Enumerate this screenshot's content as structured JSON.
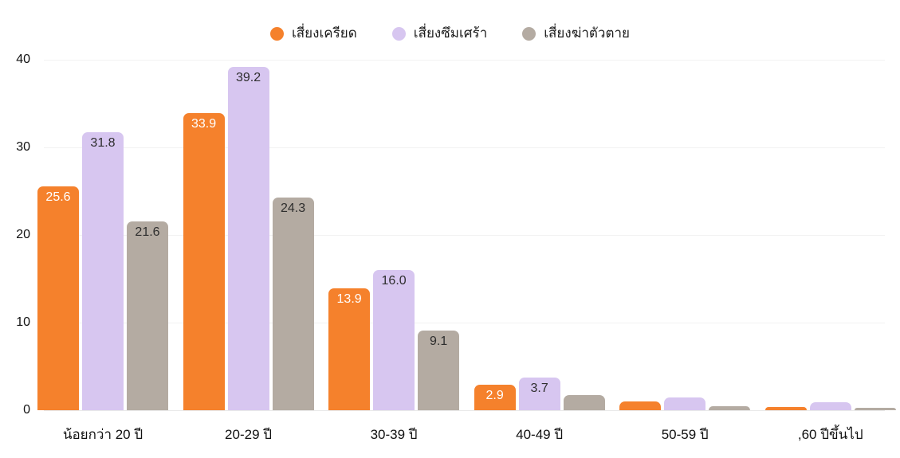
{
  "chart_data": {
    "type": "bar",
    "title": "",
    "xlabel": "",
    "ylabel": "",
    "ylim": [
      0,
      40
    ],
    "yticks": [
      0,
      10,
      20,
      30,
      40
    ],
    "grid": true,
    "legend_position": "top",
    "categories": [
      "น้อยกว่า 20 ปี",
      "20-29 ปี",
      "30-39 ปี",
      "40-49 ปี",
      "50-59 ปี",
      ",60 ปีขึ้นไป"
    ],
    "series": [
      {
        "key": "stress",
        "name": "เสี่ยงเครียด",
        "color": "#F5812C",
        "label_color": "#ffffff",
        "values": [
          25.6,
          33.9,
          13.9,
          2.9,
          1.0,
          0.4
        ],
        "labels": [
          "25.6",
          "33.9",
          "13.9",
          "2.9",
          "",
          ""
        ]
      },
      {
        "key": "depression",
        "name": "เสี่ยงซึมเศร้า",
        "color": "#D7C6F0",
        "label_color": "#2e2e2e",
        "values": [
          31.8,
          39.2,
          16.0,
          3.7,
          1.5,
          0.9
        ],
        "labels": [
          "31.8",
          "39.2",
          "16.0",
          "3.7",
          "",
          ""
        ]
      },
      {
        "key": "suicide",
        "name": "เสี่ยงฆ่าตัวตาย",
        "color": "#B4ABA2",
        "label_color": "#2e2e2e",
        "values": [
          21.6,
          24.3,
          9.1,
          1.7,
          0.5,
          0.3
        ],
        "labels": [
          "21.6",
          "24.3",
          "9.1",
          "",
          "",
          ""
        ]
      }
    ],
    "colors": {
      "grid": "#f2f2f2",
      "baseline": "#e9e9e9",
      "axis_text": "#111111",
      "legend_text": "#1c1c1c",
      "background": "#ffffff"
    }
  }
}
